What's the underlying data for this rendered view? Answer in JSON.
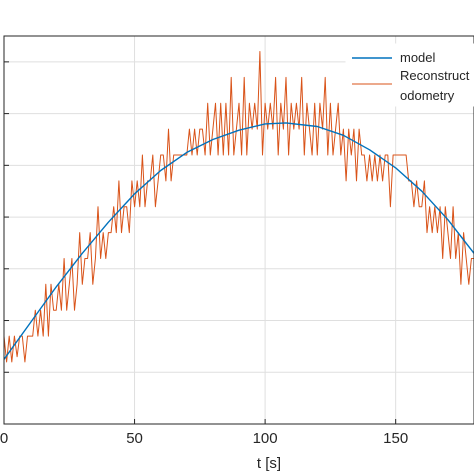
{
  "chart_data": {
    "type": "line",
    "title": "",
    "xlabel": "t [s]",
    "ylabel": "",
    "xlim": [
      0,
      180
    ],
    "ylim": [
      0,
      7.5
    ],
    "x_ticks": [
      0,
      50,
      100,
      150
    ],
    "x_tick_labels": [
      "0",
      "50",
      "100",
      "150"
    ],
    "y_gridlines": [
      0,
      1,
      2,
      3,
      4,
      5,
      6,
      7
    ],
    "grid": true,
    "legend_position": "top-right",
    "series": [
      {
        "name": "model",
        "color": "#0072bd",
        "x": [
          0,
          10,
          20,
          30,
          40,
          50,
          60,
          70,
          80,
          90,
          100,
          108,
          120,
          130,
          140,
          150,
          160,
          170,
          180
        ],
        "y": [
          1.25,
          1.95,
          2.65,
          3.3,
          3.9,
          4.45,
          4.9,
          5.25,
          5.5,
          5.68,
          5.8,
          5.82,
          5.75,
          5.58,
          5.3,
          4.95,
          4.5,
          3.95,
          3.3
        ]
      },
      {
        "name": "Reconstruct odometry",
        "color": "#d95319",
        "x": [
          0,
          1,
          2,
          3,
          4,
          5,
          6,
          7,
          8,
          9,
          10,
          11,
          12,
          13,
          14,
          15,
          16,
          17,
          18,
          19,
          20,
          21,
          22,
          23,
          24,
          25,
          26,
          27,
          28,
          29,
          30,
          31,
          32,
          33,
          34,
          35,
          36,
          37,
          38,
          39,
          40,
          41,
          42,
          43,
          44,
          45,
          46,
          47,
          48,
          49,
          50,
          51,
          52,
          53,
          54,
          55,
          56,
          57,
          58,
          59,
          60,
          61,
          62,
          63,
          64,
          65,
          66,
          67,
          68,
          69,
          70,
          71,
          72,
          73,
          74,
          75,
          76,
          77,
          78,
          79,
          80,
          81,
          82,
          83,
          84,
          85,
          86,
          87,
          88,
          89,
          90,
          91,
          92,
          93,
          94,
          95,
          96,
          97,
          98,
          99,
          100,
          101,
          102,
          103,
          104,
          105,
          106,
          107,
          108,
          109,
          110,
          111,
          112,
          113,
          114,
          115,
          116,
          117,
          118,
          119,
          120,
          121,
          122,
          123,
          124,
          125,
          126,
          127,
          128,
          129,
          130,
          131,
          132,
          133,
          134,
          135,
          136,
          137,
          138,
          139,
          140,
          141,
          142,
          143,
          144,
          145,
          146,
          147,
          148,
          149,
          150,
          151,
          152,
          153,
          154,
          155,
          156,
          157,
          158,
          159,
          160,
          161,
          162,
          163,
          164,
          165,
          166,
          167,
          168,
          169,
          170,
          171,
          172,
          173,
          174,
          175,
          176,
          177,
          178,
          179,
          180
        ],
        "y": [
          1.7,
          1.2,
          1.7,
          1.2,
          1.7,
          1.3,
          1.7,
          1.7,
          1.2,
          1.7,
          1.7,
          1.7,
          2.2,
          1.7,
          2.2,
          1.7,
          2.7,
          1.7,
          2.7,
          2.2,
          2.2,
          2.7,
          2.2,
          3.2,
          2.2,
          2.7,
          3.2,
          2.2,
          2.7,
          3.7,
          2.7,
          3.2,
          3.2,
          3.7,
          2.7,
          3.2,
          4.2,
          3.2,
          3.7,
          3.2,
          3.7,
          3.7,
          4.2,
          3.7,
          4.7,
          3.7,
          4.2,
          4.2,
          3.7,
          4.7,
          4.2,
          4.7,
          4.2,
          5.2,
          4.2,
          4.7,
          4.7,
          5.2,
          4.2,
          4.7,
          5.2,
          5.2,
          4.7,
          5.7,
          4.7,
          5.2,
          5.2,
          5.2,
          5.2,
          5.2,
          5.2,
          5.7,
          5.2,
          5.7,
          5.2,
          5.7,
          5.7,
          5.2,
          6.2,
          5.2,
          5.7,
          6.2,
          5.2,
          6.2,
          5.2,
          6.2,
          5.2,
          6.7,
          5.2,
          5.7,
          6.2,
          5.2,
          6.7,
          5.2,
          6.2,
          5.7,
          6.2,
          5.7,
          7.2,
          5.2,
          6.2,
          5.7,
          6.2,
          5.7,
          6.7,
          5.2,
          6.2,
          5.7,
          6.7,
          5.2,
          6.2,
          5.7,
          6.2,
          5.7,
          6.7,
          5.2,
          6.2,
          5.7,
          5.2,
          6.2,
          5.2,
          6.2,
          5.7,
          6.7,
          5.2,
          6.2,
          5.2,
          5.7,
          6.2,
          5.2,
          5.7,
          4.7,
          5.7,
          5.2,
          5.7,
          4.7,
          5.7,
          5.2,
          5.2,
          4.7,
          5.2,
          4.7,
          5.2,
          4.7,
          5.2,
          4.7,
          5.2,
          5.2,
          4.2,
          5.2,
          5.2,
          5.2,
          5.2,
          5.2,
          5.2,
          4.7,
          4.7,
          4.2,
          4.7,
          4.2,
          4.2,
          4.7,
          3.7,
          4.2,
          3.7,
          4.2,
          3.7,
          4.2,
          3.2,
          4.2,
          3.7,
          3.2,
          4.2,
          3.2,
          3.7,
          2.7,
          3.7,
          3.2,
          2.7,
          3.2,
          3.2
        ]
      }
    ]
  }
}
